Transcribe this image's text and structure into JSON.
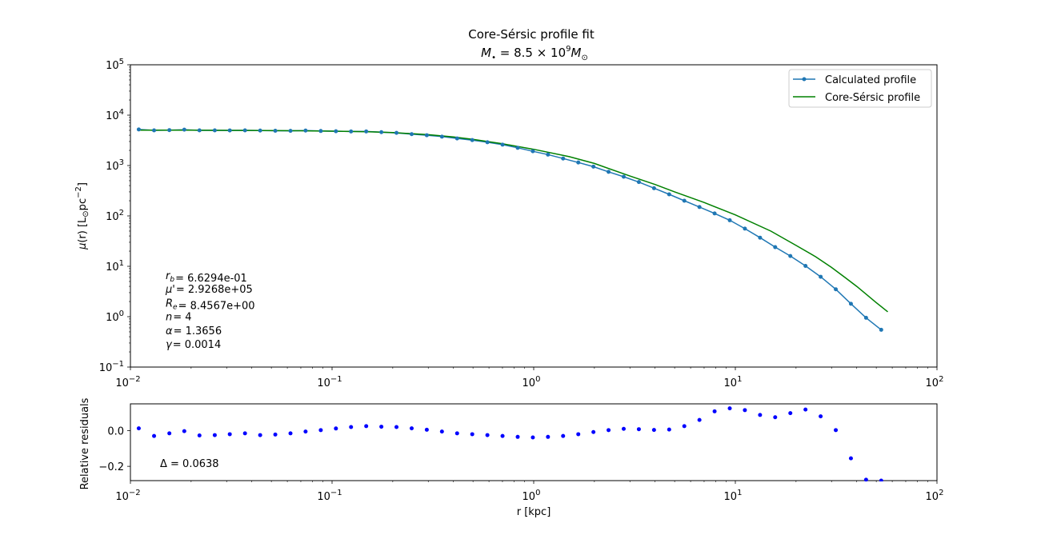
{
  "chart_data": [
    {
      "type": "line",
      "title": "Core-Sérsic profile fit",
      "subtitle": "M• = 8.5 × 10^9 M⊙",
      "xlabel": "",
      "ylabel": "μ(r) [L⊙pc⁻²]",
      "xscale": "log",
      "yscale": "log",
      "xlim": [
        0.01,
        100
      ],
      "ylim": [
        0.1,
        100000
      ],
      "x_tick_labels": [
        "10⁻²",
        "10⁻¹",
        "10⁰",
        "10¹",
        "10²"
      ],
      "y_tick_labels": [
        "10⁻¹",
        "10⁰",
        "10¹",
        "10²",
        "10³",
        "10⁴",
        "10⁵"
      ],
      "legend_position": "top-right",
      "series": [
        {
          "name": "Calculated profile",
          "color": "#1f77b4",
          "marker": "circle",
          "x": [
            0.011,
            0.0131,
            0.0156,
            0.0185,
            0.022,
            0.0262,
            0.0311,
            0.037,
            0.044,
            0.0523,
            0.0622,
            0.0739,
            0.0879,
            0.1045,
            0.1242,
            0.1477,
            0.1756,
            0.2087,
            0.2482,
            0.295,
            0.3507,
            0.417,
            0.4957,
            0.5893,
            0.7006,
            0.833,
            0.9903,
            1.177,
            1.399,
            1.664,
            1.978,
            2.351,
            2.795,
            3.323,
            3.951,
            4.697,
            5.584,
            6.638,
            7.891,
            9.382,
            11.15,
            13.26,
            15.76,
            18.74,
            22.28,
            26.49,
            31.49,
            37.43,
            44.5,
            52.9
          ],
          "values": [
            5200,
            5000,
            5050,
            5150,
            5000,
            5000,
            4980,
            5000,
            4950,
            4900,
            4880,
            4950,
            4850,
            4800,
            4750,
            4750,
            4600,
            4450,
            4200,
            4000,
            3750,
            3450,
            3200,
            2900,
            2600,
            2250,
            1920,
            1650,
            1380,
            1150,
            950,
            750,
            600,
            470,
            355,
            268,
            200,
            150,
            112,
            82,
            56,
            37,
            24,
            16,
            10.2,
            6.2,
            3.5,
            1.8,
            0.95,
            0.55
          ]
        },
        {
          "name": "Core-Sérsic profile",
          "color": "#008000",
          "x": [
            0.011,
            0.02,
            0.04,
            0.07,
            0.1,
            0.15,
            0.2,
            0.3,
            0.4,
            0.5,
            0.7,
            1.0,
            1.5,
            2.0,
            3.0,
            4.0,
            5.0,
            7.0,
            10.0,
            15.0,
            20.0,
            25.0,
            30.0,
            35.0,
            40.0,
            45.0,
            50.0,
            57.0
          ],
          "values": [
            5050,
            5030,
            4980,
            4900,
            4820,
            4700,
            4500,
            4100,
            3700,
            3300,
            2700,
            2100,
            1500,
            1100,
            620,
            420,
            300,
            185,
            105,
            50,
            26,
            15.5,
            9.5,
            6.0,
            4.0,
            2.7,
            1.9,
            1.25
          ]
        }
      ],
      "annotations": [
        {
          "symbol": "r",
          "sub": "b",
          "value": "6.6294e-01"
        },
        {
          "symbol": "μ'",
          "sub": "",
          "value": "2.9268e+05"
        },
        {
          "symbol": "R",
          "sub": "e",
          "value": "8.4567e+00"
        },
        {
          "symbol": "n",
          "sub": "",
          "value": "4"
        },
        {
          "symbol": "α",
          "sub": "",
          "value": "1.3656"
        },
        {
          "symbol": "γ",
          "sub": "",
          "value": "0.0014"
        }
      ]
    },
    {
      "type": "scatter",
      "xlabel": "r [kpc]",
      "ylabel": "Relative residuals",
      "xscale": "log",
      "xlim": [
        0.01,
        100
      ],
      "ylim": [
        -0.28,
        0.15
      ],
      "x_tick_labels": [
        "10⁻²",
        "10⁻¹",
        "10⁰",
        "10¹",
        "10²"
      ],
      "y_tick_labels": [
        "−0.2",
        "0.0"
      ],
      "y_ticks": [
        -0.2,
        0.0
      ],
      "series": [
        {
          "color": "#0000ff",
          "x": [
            0.011,
            0.0131,
            0.0156,
            0.0185,
            0.022,
            0.0262,
            0.0311,
            0.037,
            0.044,
            0.0523,
            0.0622,
            0.0739,
            0.0879,
            0.1045,
            0.1242,
            0.1477,
            0.1756,
            0.2087,
            0.2482,
            0.295,
            0.3507,
            0.417,
            0.4957,
            0.5893,
            0.7006,
            0.833,
            0.9903,
            1.177,
            1.399,
            1.664,
            1.978,
            2.351,
            2.795,
            3.323,
            3.951,
            4.697,
            5.584,
            6.638,
            7.891,
            9.382,
            11.15,
            13.26,
            15.76,
            18.74,
            22.28,
            26.49,
            31.49,
            37.43,
            44.5,
            52.9
          ],
          "values": [
            0.013,
            -0.03,
            -0.015,
            -0.003,
            -0.027,
            -0.025,
            -0.02,
            -0.015,
            -0.025,
            -0.022,
            -0.015,
            -0.005,
            0.003,
            0.012,
            0.02,
            0.025,
            0.022,
            0.02,
            0.013,
            0.005,
            -0.005,
            -0.015,
            -0.02,
            -0.025,
            -0.03,
            -0.035,
            -0.038,
            -0.035,
            -0.03,
            -0.02,
            -0.008,
            0.003,
            0.01,
            0.008,
            0.004,
            0.006,
            0.025,
            0.06,
            0.108,
            0.125,
            0.115,
            0.088,
            0.075,
            0.098,
            0.118,
            0.08,
            0.003,
            -0.155,
            -0.275,
            -0.28
          ]
        }
      ],
      "annotation": "Δ = 0.0638"
    }
  ]
}
